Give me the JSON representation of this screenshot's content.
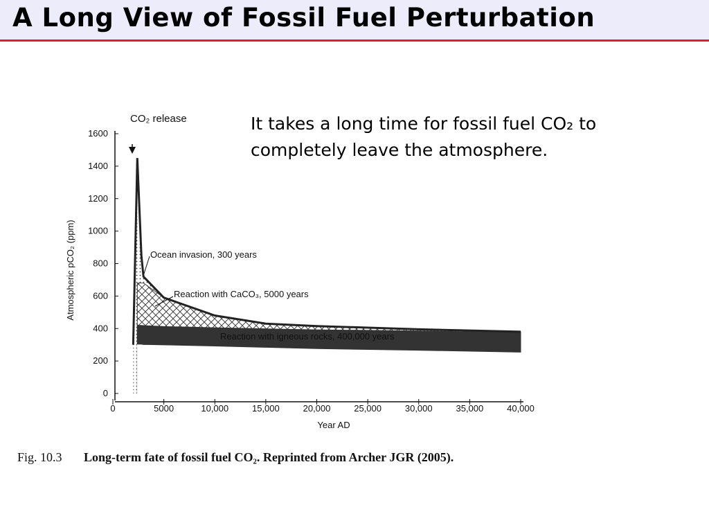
{
  "header": {
    "title": "A Long View of Fossil Fuel Perturbation"
  },
  "body": {
    "text": "It takes a long time for fossil fuel CO₂ to completely leave the atmosphere."
  },
  "figure": {
    "label": "Fig. 10.3",
    "caption": "Long-term fate of fossil fuel CO₂. Reprinted from Archer JGR (2005)."
  },
  "chart_data": {
    "type": "area",
    "xlabel": "Year AD",
    "ylabel": "Atmospheric pCO₂ (ppm)",
    "annotations": [
      "CO₂ release",
      "Ocean invasion, 300 years",
      "Reaction with CaCO₃, 5000 years",
      "Reaction with igneous rocks, 400,000 years"
    ],
    "x": [
      2000,
      2400,
      2800,
      3000,
      5000,
      10000,
      15000,
      20000,
      30000,
      40000
    ],
    "series": [
      {
        "color": "#222222",
        "pattern": "dots",
        "values": [
          300,
          1450,
          850,
          720,
          590,
          480,
          430,
          415,
          395,
          380
        ]
      },
      {
        "color": "#444444",
        "pattern": "hatch",
        "values": [
          null,
          680,
          680,
          680,
          590,
          480,
          430,
          415,
          395,
          380
        ]
      },
      {
        "color": "#333333",
        "pattern": "solid",
        "values": [
          null,
          420,
          419,
          418,
          412,
          405,
          398,
          392,
          385,
          375
        ]
      },
      {
        "color": "#ffffff",
        "pattern": "solid",
        "values": [
          null,
          300,
          299,
          298,
          295,
          288,
          280,
          272,
          262,
          250
        ]
      }
    ],
    "xlim": [
      0,
      40000
    ],
    "xticks": [
      0,
      5000,
      {
        "value": 10000,
        "label": "10,000"
      },
      {
        "value": 15000,
        "label": "15,000"
      },
      {
        "value": 20000,
        "label": "20,000"
      },
      {
        "value": 25000,
        "label": "25,000"
      },
      {
        "value": 30000,
        "label": "30,000"
      },
      {
        "value": 35000,
        "label": "35,000"
      },
      {
        "value": 40000,
        "label": "40,000"
      }
    ],
    "ylim": [
      0,
      1600
    ],
    "yticks": [
      0,
      200,
      400,
      600,
      800,
      1000,
      1200,
      1400,
      1600
    ],
    "grid": false
  }
}
